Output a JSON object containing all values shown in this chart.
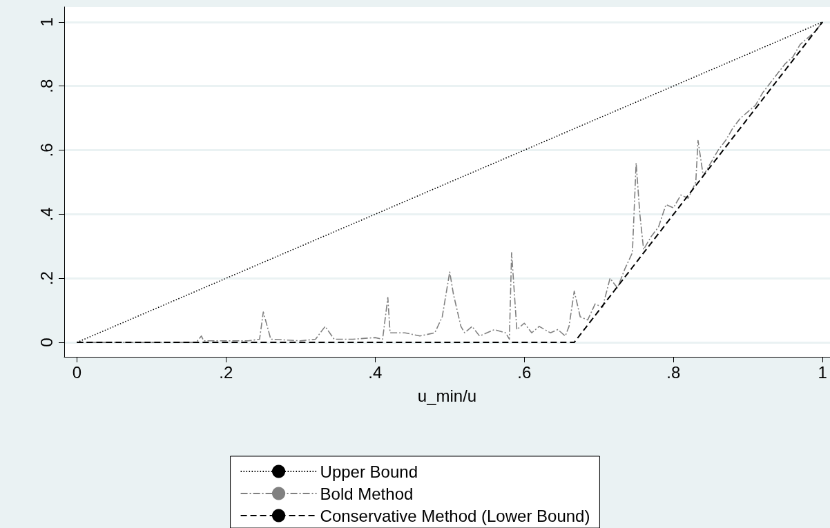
{
  "chart_data": {
    "type": "line",
    "xlabel": "u_min/u",
    "xlim": [
      -0.017,
      1.01
    ],
    "ylim": [
      -0.045,
      1.047
    ],
    "xticks": [
      0,
      {
        "value": 0.2,
        "label": ".2"
      },
      {
        "value": 0.4,
        "label": ".4"
      },
      {
        "value": 0.6,
        "label": ".6"
      },
      {
        "value": 0.8,
        "label": ".8"
      },
      1
    ],
    "yticks": [
      0,
      {
        "value": 0.2,
        "label": ".2"
      },
      {
        "value": 0.4,
        "label": ".4"
      },
      {
        "value": 0.6,
        "label": ".6"
      },
      {
        "value": 0.8,
        "label": ".8"
      },
      1
    ],
    "grid": "y",
    "legend": "bottom",
    "marker": "none",
    "series": [
      {
        "name": "Upper Bound",
        "color": "#000000",
        "line_style": "dotted",
        "x": [
          0,
          1
        ],
        "values": [
          0,
          1
        ]
      },
      {
        "name": "Bold Method",
        "color": "#808080",
        "line_style": "dashdot",
        "x": [
          0,
          0.16,
          0.167,
          0.17,
          0.2,
          0.23,
          0.245,
          0.25,
          0.26,
          0.3,
          0.32,
          0.333,
          0.345,
          0.37,
          0.4,
          0.41,
          0.417,
          0.42,
          0.44,
          0.46,
          0.48,
          0.49,
          0.5,
          0.505,
          0.515,
          0.52,
          0.53,
          0.54,
          0.56,
          0.575,
          0.58,
          0.583,
          0.59,
          0.6,
          0.61,
          0.62,
          0.635,
          0.645,
          0.655,
          0.66,
          0.667,
          0.675,
          0.685,
          0.695,
          0.705,
          0.715,
          0.725,
          0.735,
          0.745,
          0.75,
          0.755,
          0.76,
          0.77,
          0.78,
          0.79,
          0.8,
          0.81,
          0.82,
          0.83,
          0.833,
          0.84,
          0.85,
          0.86,
          0.87,
          0.88,
          0.89,
          0.9,
          0.91,
          0.92,
          0.93,
          0.94,
          0.95,
          0.96,
          0.97,
          0.98,
          0.99,
          1
        ],
        "values": [
          0,
          0,
          0.02,
          0.005,
          0.005,
          0.005,
          0.01,
          0.095,
          0.01,
          0.005,
          0.01,
          0.05,
          0.01,
          0.01,
          0.015,
          0.01,
          0.14,
          0.03,
          0.03,
          0.02,
          0.03,
          0.08,
          0.22,
          0.15,
          0.05,
          0.03,
          0.05,
          0.02,
          0.04,
          0.03,
          0.01,
          0.28,
          0.04,
          0.06,
          0.03,
          0.05,
          0.03,
          0.04,
          0.02,
          0.05,
          0.16,
          0.08,
          0.07,
          0.12,
          0.11,
          0.2,
          0.17,
          0.23,
          0.28,
          0.56,
          0.4,
          0.29,
          0.33,
          0.36,
          0.43,
          0.42,
          0.46,
          0.45,
          0.5,
          0.63,
          0.52,
          0.56,
          0.6,
          0.63,
          0.67,
          0.7,
          0.72,
          0.74,
          0.78,
          0.81,
          0.84,
          0.87,
          0.89,
          0.93,
          0.95,
          0.97,
          1
        ]
      },
      {
        "name": "Conservative Method (Lower Bound)",
        "color": "#000000",
        "line_style": "dashed",
        "x": [
          0,
          0.667,
          1
        ],
        "values": [
          0,
          0,
          1
        ]
      }
    ]
  }
}
